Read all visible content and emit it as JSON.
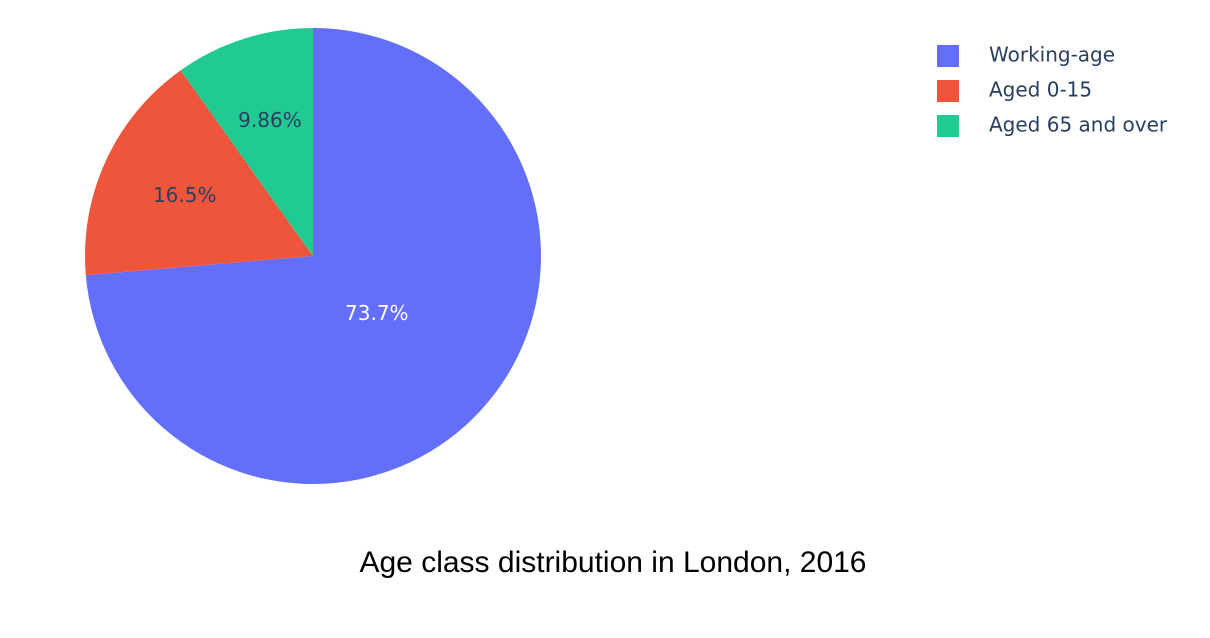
{
  "chart_data": {
    "type": "pie",
    "title": "Age class distribution in London, 2016",
    "legend_position": "top-right",
    "slices": [
      {
        "label": "Working-age",
        "value": 73.7,
        "display": "73.7%",
        "color": "#636efa",
        "label_color": "#ffffff"
      },
      {
        "label": "Aged 0-15",
        "value": 16.5,
        "display": "16.5%",
        "color": "#ef553b",
        "label_color": "#2a3f5f"
      },
      {
        "label": "Aged 65 and over",
        "value": 9.86,
        "display": "9.86%",
        "color": "#22ca93",
        "label_color": "#2a3f5f"
      }
    ]
  }
}
